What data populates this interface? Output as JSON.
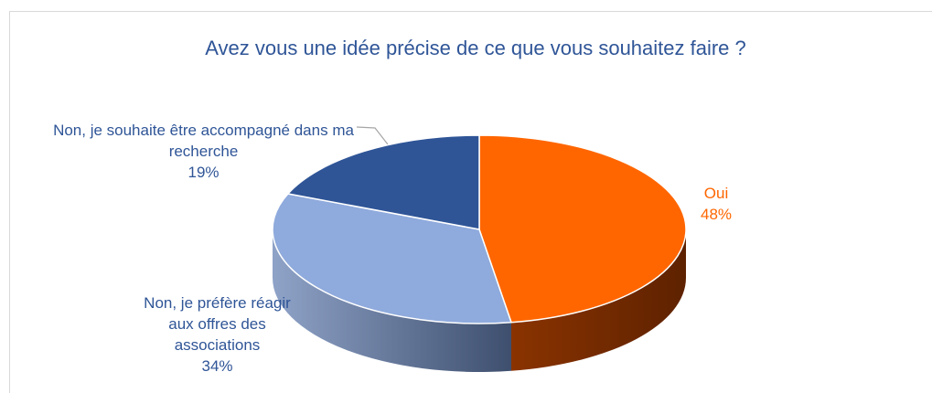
{
  "chart_data": {
    "type": "pie",
    "title": "Avez vous une idée précise de ce que vous souhaitez faire ?",
    "categories": [
      "Oui",
      "Non, je préfère réagir aux offres des associations",
      "Non, je souhaite être accompagné dans ma recherche"
    ],
    "values": [
      48,
      34,
      19
    ],
    "value_labels": [
      "48%",
      "34%",
      "19%"
    ],
    "colors": [
      "#ff6600",
      "#8faadc",
      "#2f5597"
    ],
    "label_colors": [
      "#ff6600",
      "#2f5597",
      "#2f5597"
    ]
  }
}
